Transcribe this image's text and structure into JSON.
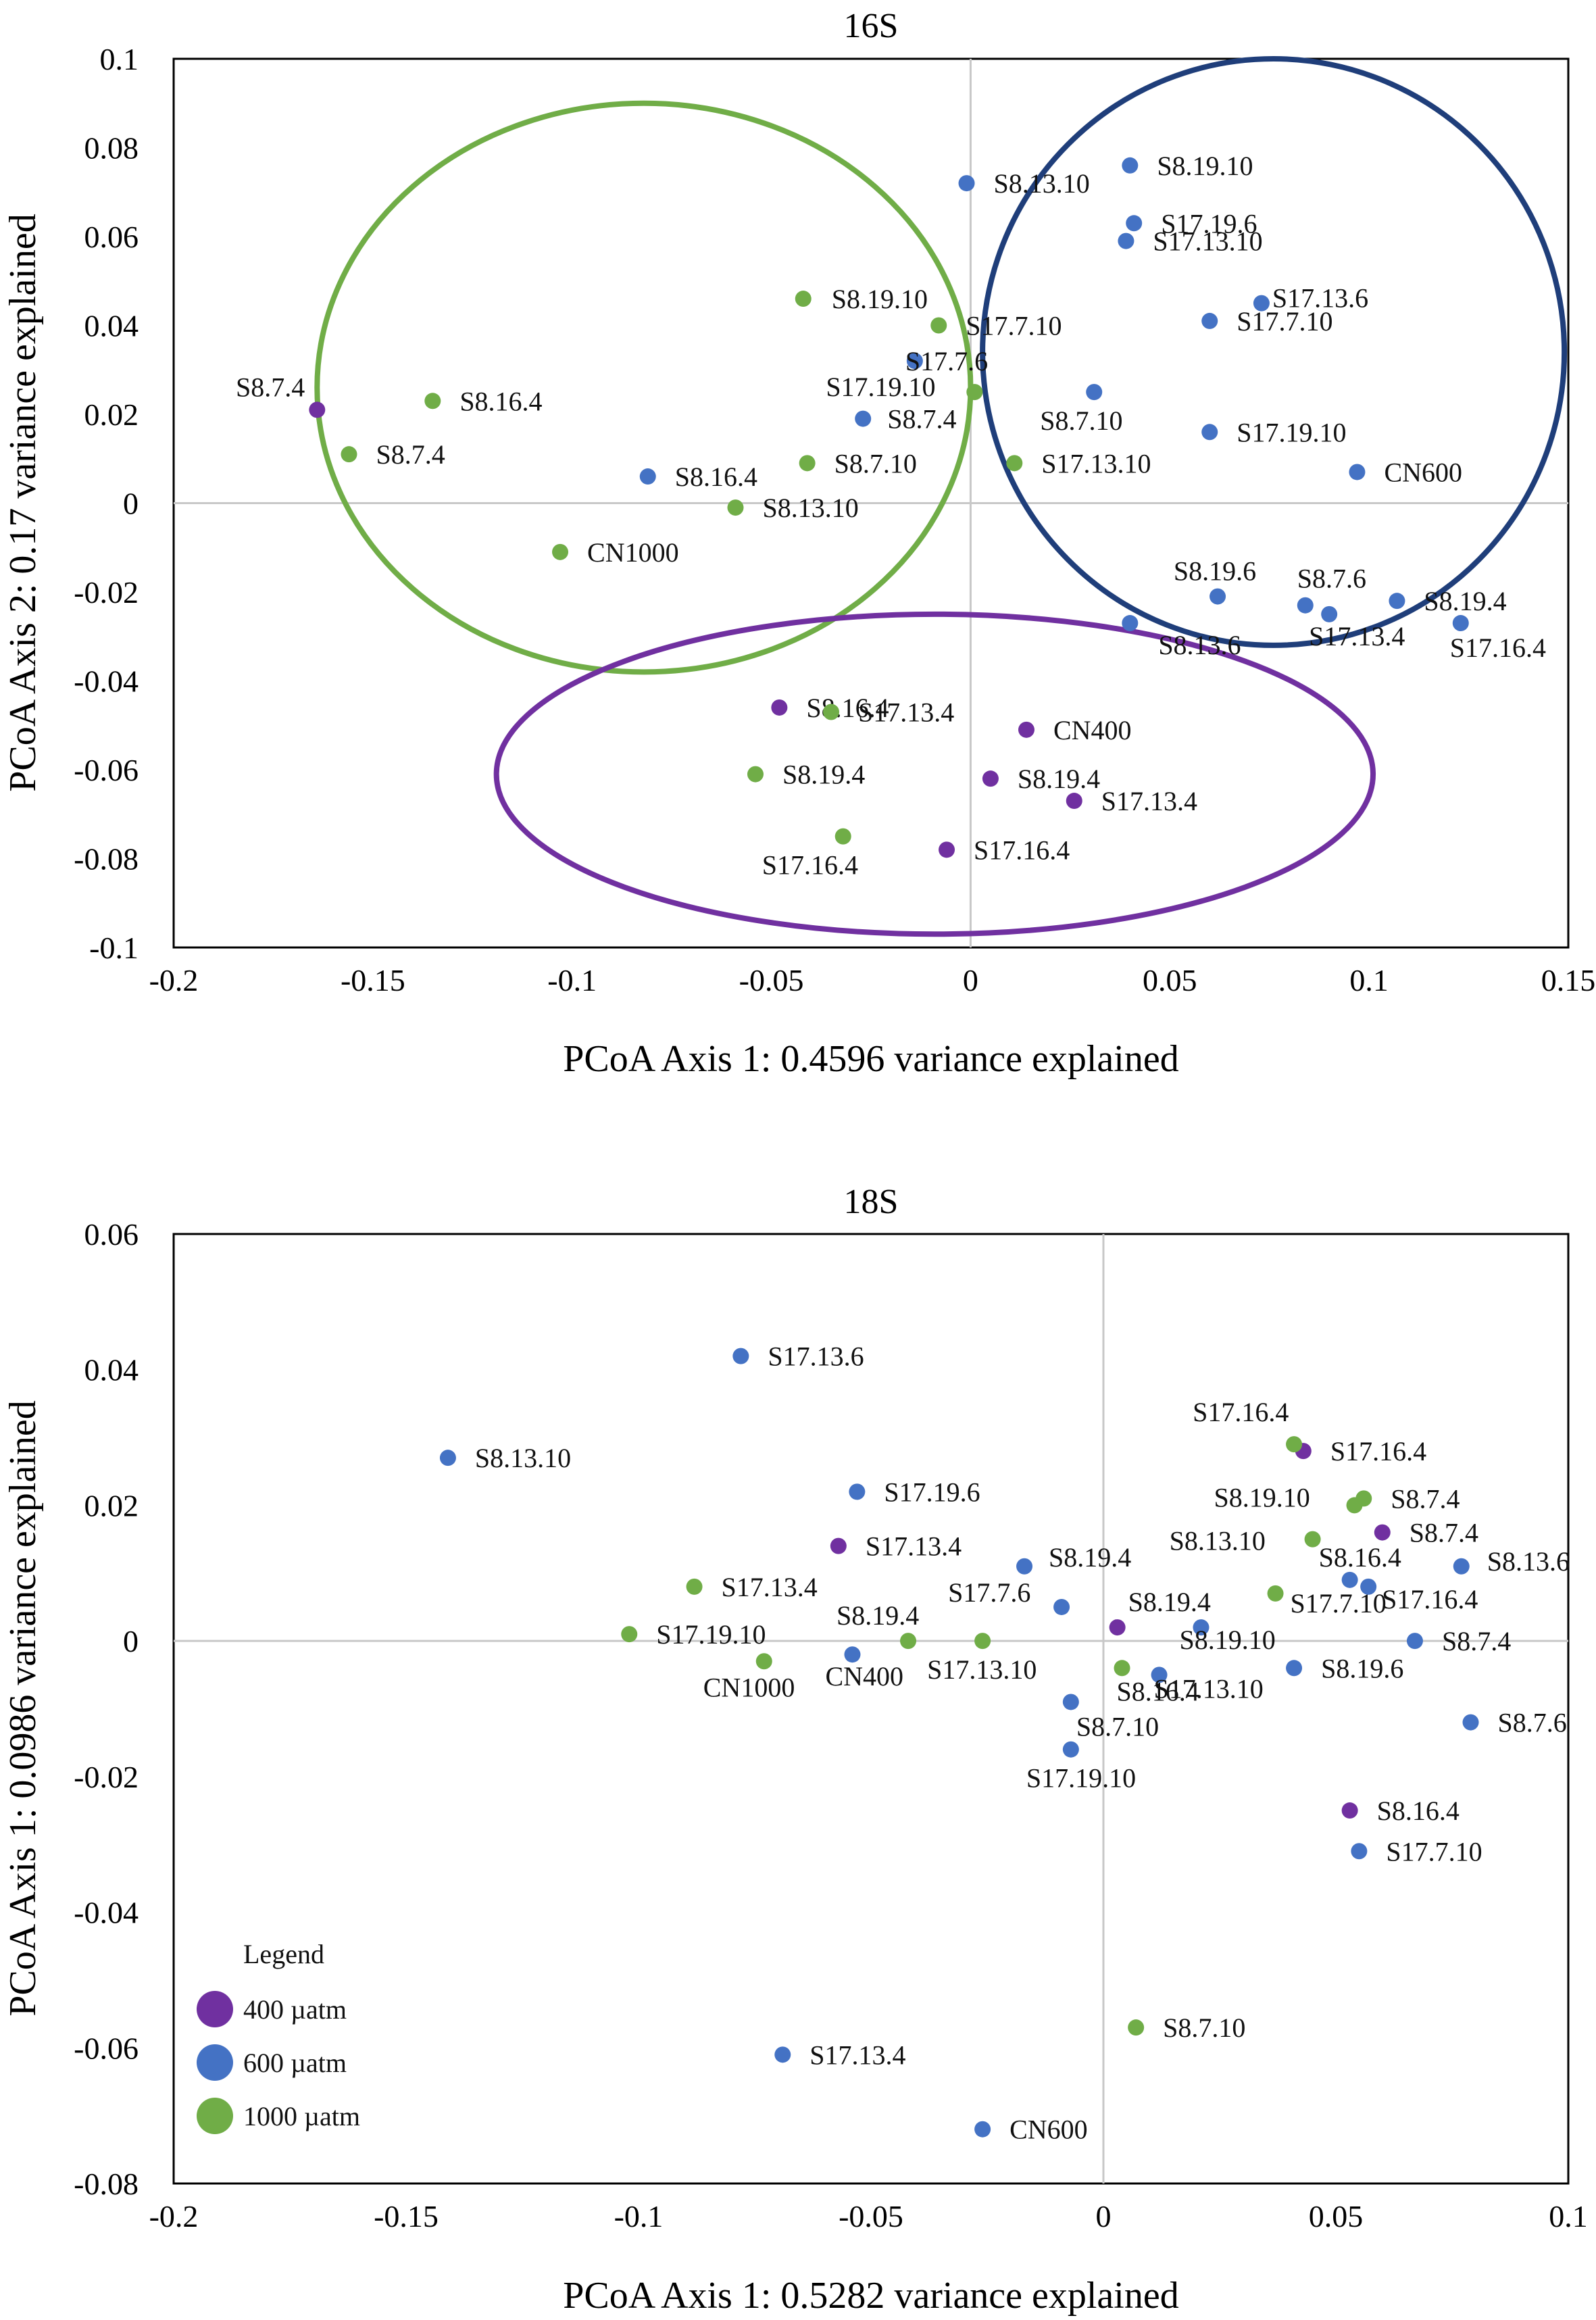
{
  "colors": {
    "p400": "#7030A0",
    "p600": "#4472C4",
    "p1000": "#70AD47",
    "ring_green": "#70AD47",
    "ring_blue": "#1F3E7A",
    "ring_purple": "#7030A0"
  },
  "legend": {
    "title": "Legend",
    "items": [
      {
        "label": "400 µatm",
        "group": "p400"
      },
      {
        "label": "600 µatm",
        "group": "p600"
      },
      {
        "label": "1000 µatm",
        "group": "p1000"
      }
    ]
  },
  "chart_data": [
    {
      "type": "scatter",
      "title": "16S",
      "xlabel": "PCoA Axis 1: 0.4596 variance explained",
      "ylabel": "PCoA Axis 2: 0.17 variance explained",
      "xlim": [
        -0.2,
        0.15
      ],
      "ylim": [
        -0.1,
        0.1
      ],
      "xticks": [
        -0.2,
        -0.15,
        -0.1,
        -0.05,
        0,
        0.05,
        0.1,
        0.15
      ],
      "yticks": [
        -0.1,
        -0.08,
        -0.06,
        -0.04,
        -0.02,
        0,
        0.02,
        0.04,
        0.06,
        0.08,
        0.1
      ],
      "xtick_labels": [
        "-0.2",
        "-0.15",
        "-0.1",
        "-0.05",
        "0",
        "0.05",
        "0.1",
        "0.15"
      ],
      "ytick_labels": [
        "-0.1",
        "-0.08",
        "-0.06",
        "-0.04",
        "-0.02",
        "0",
        "0.02",
        "0.04",
        "0.06",
        "0.08",
        "0.1"
      ],
      "ellipses": [
        {
          "group": "p1000",
          "cx": -0.082,
          "cy": 0.026,
          "rx": 0.082,
          "ry": 0.064
        },
        {
          "group": "p600",
          "cx": 0.076,
          "cy": 0.034,
          "rx": 0.073,
          "ry": 0.066
        },
        {
          "group": "p400",
          "cx": -0.009,
          "cy": -0.061,
          "rx": 0.11,
          "ry": 0.036
        }
      ],
      "series": [
        {
          "name": "400 µatm",
          "group": "p400",
          "points": [
            {
              "x": -0.164,
              "y": 0.021,
              "label": "S8.7.4"
            },
            {
              "x": -0.048,
              "y": -0.046,
              "label": "S8.16.4"
            },
            {
              "x": 0.014,
              "y": -0.051,
              "label": "CN400"
            },
            {
              "x": 0.005,
              "y": -0.062,
              "label": "S8.19.4"
            },
            {
              "x": 0.026,
              "y": -0.067,
              "label": "S17.13.4"
            },
            {
              "x": -0.006,
              "y": -0.078,
              "label": "S17.16.4"
            }
          ]
        },
        {
          "name": "600 µatm",
          "group": "p600",
          "points": [
            {
              "x": -0.001,
              "y": 0.072,
              "label": "S8.13.10"
            },
            {
              "x": 0.04,
              "y": 0.076,
              "label": "S8.19.10"
            },
            {
              "x": 0.041,
              "y": 0.063,
              "label": "S17.19.6"
            },
            {
              "x": 0.039,
              "y": 0.059,
              "label": "S17.13.10"
            },
            {
              "x": 0.073,
              "y": 0.045,
              "label": "S17.13.6"
            },
            {
              "x": 0.06,
              "y": 0.041,
              "label": "S17.7.10"
            },
            {
              "x": -0.014,
              "y": 0.032,
              "label": "S17.7.6"
            },
            {
              "x": 0.031,
              "y": 0.025,
              "label": "S8.7.10"
            },
            {
              "x": -0.027,
              "y": 0.019,
              "label": "S8.7.4"
            },
            {
              "x": 0.06,
              "y": 0.016,
              "label": "S17.19.10"
            },
            {
              "x": 0.097,
              "y": 0.007,
              "label": "CN600"
            },
            {
              "x": -0.081,
              "y": 0.006,
              "label": "S8.16.4"
            },
            {
              "x": 0.062,
              "y": -0.021,
              "label": "S8.19.6"
            },
            {
              "x": 0.084,
              "y": -0.023,
              "label": "S8.7.6"
            },
            {
              "x": 0.09,
              "y": -0.025,
              "label": "S17.13.4"
            },
            {
              "x": 0.107,
              "y": -0.022,
              "label": "S8.19.4"
            },
            {
              "x": 0.04,
              "y": -0.027,
              "label": "S8.13.6"
            },
            {
              "x": 0.123,
              "y": -0.027,
              "label": "S17.16.4"
            }
          ]
        },
        {
          "name": "1000 µatm",
          "group": "p1000",
          "points": [
            {
              "x": -0.042,
              "y": 0.046,
              "label": "S8.19.10"
            },
            {
              "x": -0.008,
              "y": 0.04,
              "label": "S17.7.10"
            },
            {
              "x": 0.001,
              "y": 0.025,
              "label": "S17.19.10"
            },
            {
              "x": -0.135,
              "y": 0.023,
              "label": "S8.16.4"
            },
            {
              "x": -0.156,
              "y": 0.011,
              "label": "S8.7.4"
            },
            {
              "x": -0.041,
              "y": 0.009,
              "label": "S8.7.10"
            },
            {
              "x": 0.011,
              "y": 0.009,
              "label": "S17.13.10"
            },
            {
              "x": -0.059,
              "y": -0.001,
              "label": "S8.13.10"
            },
            {
              "x": -0.103,
              "y": -0.011,
              "label": "CN1000"
            },
            {
              "x": -0.035,
              "y": -0.047,
              "label": "S17.13.4"
            },
            {
              "x": -0.054,
              "y": -0.061,
              "label": "S8.19.4"
            },
            {
              "x": -0.032,
              "y": -0.075,
              "label": "S17.16.4"
            }
          ]
        }
      ]
    },
    {
      "type": "scatter",
      "title": "18S",
      "xlabel": "PCoA Axis 1: 0.5282 variance explained",
      "ylabel": "PCoA Axis 1: 0.0986 variance explained",
      "xlim": [
        -0.2,
        0.1
      ],
      "ylim": [
        -0.08,
        0.06
      ],
      "xticks": [
        -0.2,
        -0.15,
        -0.1,
        -0.05,
        0,
        0.05,
        0.1
      ],
      "yticks": [
        -0.08,
        -0.06,
        -0.04,
        -0.02,
        0,
        0.02,
        0.04,
        0.06
      ],
      "xtick_labels": [
        "-0.2",
        "-0.15",
        "-0.1",
        "-0.05",
        "0",
        "0.05",
        "0.1"
      ],
      "ytick_labels": [
        "-0.08",
        "-0.06",
        "-0.04",
        "-0.02",
        "0",
        "0.02",
        "0.04",
        "0.06"
      ],
      "series": [
        {
          "name": "400 µatm",
          "group": "p400",
          "points": [
            {
              "x": 0.043,
              "y": 0.028,
              "label": "S17.16.4"
            },
            {
              "x": 0.06,
              "y": 0.016,
              "label": "S8.7.4"
            },
            {
              "x": -0.057,
              "y": 0.014,
              "label": "S17.13.4"
            },
            {
              "x": 0.003,
              "y": 0.002,
              "label": "S8.19.4"
            },
            {
              "x": 0.053,
              "y": -0.025,
              "label": "S8.16.4"
            }
          ]
        },
        {
          "name": "600 µatm",
          "group": "p600",
          "points": [
            {
              "x": -0.078,
              "y": 0.042,
              "label": "S17.13.6"
            },
            {
              "x": -0.141,
              "y": 0.027,
              "label": "S8.13.10"
            },
            {
              "x": -0.053,
              "y": 0.022,
              "label": "S17.19.6"
            },
            {
              "x": -0.017,
              "y": 0.011,
              "label": "S8.19.4"
            },
            {
              "x": -0.009,
              "y": 0.005,
              "label": "S17.7.6"
            },
            {
              "x": 0.053,
              "y": 0.009,
              "label": "S8.16.4"
            },
            {
              "x": 0.057,
              "y": 0.008,
              "label": "S17.16.4"
            },
            {
              "x": 0.077,
              "y": 0.011,
              "label": "S8.13.6"
            },
            {
              "x": 0.021,
              "y": 0.002,
              "label": "S8.19.10"
            },
            {
              "x": 0.067,
              "y": 0.0,
              "label": "S8.7.4"
            },
            {
              "x": -0.054,
              "y": -0.002,
              "label": "CN400"
            },
            {
              "x": 0.012,
              "y": -0.005,
              "label": "S17.13.10"
            },
            {
              "x": 0.041,
              "y": -0.004,
              "label": "S8.19.6"
            },
            {
              "x": -0.007,
              "y": -0.009,
              "label": "S8.7.10"
            },
            {
              "x": -0.007,
              "y": -0.016,
              "label": "S17.19.10"
            },
            {
              "x": 0.079,
              "y": -0.012,
              "label": "S8.7.6"
            },
            {
              "x": 0.055,
              "y": -0.031,
              "label": "S17.7.10"
            },
            {
              "x": -0.069,
              "y": -0.061,
              "label": "S17.13.4"
            },
            {
              "x": -0.026,
              "y": -0.072,
              "label": "CN600"
            }
          ]
        },
        {
          "name": "1000 µatm",
          "group": "p1000",
          "points": [
            {
              "x": 0.041,
              "y": 0.029,
              "label": "S17.16.4"
            },
            {
              "x": 0.056,
              "y": 0.021,
              "label": "S8.7.4"
            },
            {
              "x": 0.054,
              "y": 0.02,
              "label": "S8.19.10"
            },
            {
              "x": 0.045,
              "y": 0.015,
              "label": "S8.13.10"
            },
            {
              "x": -0.088,
              "y": 0.008,
              "label": "S17.13.4"
            },
            {
              "x": 0.037,
              "y": 0.007,
              "label": "S17.7.10"
            },
            {
              "x": -0.102,
              "y": 0.001,
              "label": "S17.19.10"
            },
            {
              "x": -0.042,
              "y": 0.0,
              "label": "S8.19.4"
            },
            {
              "x": -0.026,
              "y": 0.0,
              "label": "S17.13.10"
            },
            {
              "x": -0.073,
              "y": -0.003,
              "label": "CN1000"
            },
            {
              "x": 0.004,
              "y": -0.004,
              "label": "S8.16.4"
            },
            {
              "x": 0.007,
              "y": -0.057,
              "label": "S8.7.10"
            }
          ]
        }
      ]
    }
  ]
}
